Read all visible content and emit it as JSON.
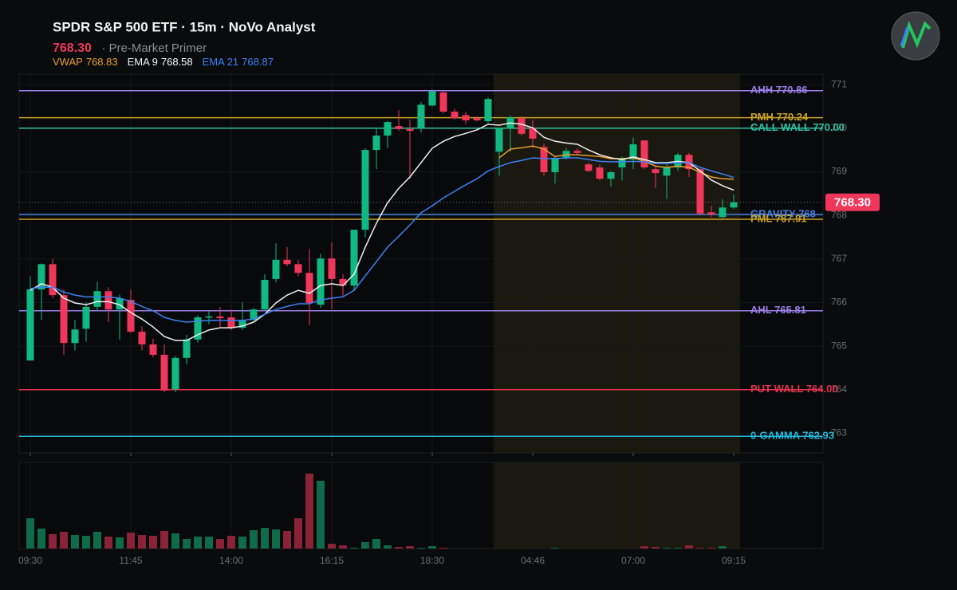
{
  "chart_data": {
    "type": "candlestick",
    "title": "SPDR S&P 500 ETF · 15m · NoVo Analyst",
    "last_price": {
      "value": 768.3,
      "label": "768.30"
    },
    "subtitle": "· Pre-Market Primer",
    "categories": [
      "09:30",
      null,
      null,
      null,
      null,
      null,
      null,
      null,
      null,
      "11:45",
      null,
      null,
      null,
      null,
      null,
      null,
      null,
      null,
      "14:00",
      null,
      null,
      null,
      null,
      null,
      null,
      null,
      null,
      "16:15",
      null,
      null,
      null,
      null,
      null,
      null,
      null,
      null,
      "18:30",
      null,
      null,
      null,
      null,
      null,
      null,
      null,
      null,
      "04:46",
      null,
      null,
      null,
      null,
      null,
      null,
      null,
      null,
      "07:00",
      null,
      null,
      null,
      null,
      null,
      null,
      null,
      null,
      "09:15"
    ],
    "open": [
      764.67,
      766.3,
      766.88,
      766.17,
      765.07,
      765.4,
      765.9,
      766.26,
      765.84,
      766.06,
      765.33,
      765.04,
      764.8,
      764.01,
      764.73,
      765.15,
      765.66,
      765.68,
      765.66,
      765.42,
      765.6,
      765.84,
      766.54,
      766.98,
      766.88,
      766.68,
      765.95,
      767.01,
      766.54,
      766.39,
      767.67,
      769.5,
      769.83,
      770.05,
      769.98,
      770.01,
      770.52,
      770.82,
      770.38,
      770.3,
      770.23,
      770.16,
      769.46,
      770.01,
      770.23,
      770.01,
      769.57,
      768.99,
      769.32,
      769.48,
      769.17,
      769.1,
      768.84,
      769.1,
      769.28,
      769.72,
      769.06,
      768.91,
      769.1,
      769.39,
      769.06,
      768.07,
      767.96,
      768.18
    ],
    "high": [
      766.6,
      766.9,
      767.0,
      766.3,
      765.6,
      766.0,
      766.48,
      766.35,
      766.18,
      766.3,
      765.45,
      765.17,
      765.04,
      764.78,
      765.26,
      765.71,
      765.8,
      765.9,
      765.84,
      766.0,
      765.88,
      766.65,
      767.36,
      767.27,
      766.98,
      767.23,
      767.12,
      767.38,
      766.65,
      767.67,
      769.54,
      770.01,
      770.16,
      770.41,
      770.2,
      770.6,
      770.89,
      770.85,
      770.45,
      770.38,
      770.27,
      770.71,
      770.01,
      770.29,
      770.27,
      770.2,
      769.65,
      769.35,
      769.54,
      769.54,
      769.21,
      769.17,
      769.02,
      769.35,
      769.79,
      769.72,
      769.13,
      769.17,
      769.43,
      769.43,
      769.1,
      768.22,
      768.37,
      768.48
    ],
    "low": [
      764.67,
      765.6,
      766.1,
      764.8,
      764.9,
      765.1,
      765.8,
      765.55,
      765.15,
      765.3,
      764.9,
      764.74,
      763.94,
      763.94,
      764.58,
      765.08,
      765.5,
      765.44,
      765.37,
      765.37,
      765.58,
      765.8,
      766.46,
      766.83,
      766.6,
      765.48,
      765.88,
      765.84,
      766.13,
      766.3,
      767.49,
      769.06,
      769.54,
      769.94,
      768.84,
      769.9,
      770.49,
      770.34,
      770.2,
      770.09,
      770.16,
      770.12,
      768.91,
      769.46,
      769.83,
      769.54,
      768.91,
      768.73,
      769.28,
      769.39,
      768.99,
      768.8,
      768.66,
      768.8,
      769.06,
      769.06,
      768.62,
      768.37,
      769.02,
      768.88,
      768.0,
      767.96,
      767.93,
      768.15
    ],
    "close": [
      766.3,
      766.88,
      766.17,
      765.07,
      765.38,
      765.9,
      766.26,
      765.84,
      766.1,
      765.33,
      765.04,
      764.8,
      763.98,
      764.73,
      765.15,
      765.66,
      765.68,
      765.64,
      765.42,
      765.6,
      765.84,
      766.52,
      766.98,
      766.88,
      766.68,
      765.99,
      767.01,
      766.54,
      766.39,
      767.67,
      769.5,
      769.83,
      770.14,
      769.98,
      769.94,
      770.54,
      770.85,
      770.38,
      770.23,
      770.18,
      770.18,
      770.67,
      770.01,
      770.25,
      769.87,
      769.76,
      768.99,
      769.32,
      769.48,
      769.43,
      769.02,
      768.84,
      768.99,
      769.28,
      769.63,
      769.1,
      768.97,
      769.1,
      769.39,
      769.06,
      768.04,
      768.02,
      768.18,
      768.3
    ],
    "volume": [
      38,
      25,
      18,
      21,
      17,
      16,
      21,
      15,
      14,
      20,
      17,
      16,
      22,
      19,
      12,
      15,
      15,
      12,
      16,
      15,
      23,
      26,
      24,
      22,
      38,
      94,
      85,
      6,
      4,
      1,
      8,
      12,
      4,
      2,
      3,
      1,
      3,
      1,
      0,
      0,
      0,
      0,
      0,
      0,
      0,
      0,
      0,
      1,
      0,
      0,
      0,
      0,
      0,
      0,
      0,
      3,
      2,
      1,
      1,
      4,
      1,
      1,
      3,
      0
    ],
    "volume_ylim": [
      0,
      108
    ],
    "up_color": "#10b981",
    "down_color": "#f0365a",
    "volume_up_color": "#0f6b4a",
    "volume_down_color": "#8a2338",
    "series": [
      {
        "name": "VWAP",
        "color": "#e8a030",
        "values": [
          null,
          null,
          null,
          null,
          null,
          null,
          null,
          null,
          null,
          null,
          null,
          null,
          null,
          null,
          null,
          null,
          null,
          null,
          null,
          null,
          null,
          null,
          null,
          null,
          null,
          null,
          null,
          null,
          null,
          null,
          null,
          null,
          null,
          null,
          null,
          null,
          null,
          null,
          null,
          null,
          null,
          null,
          769.32,
          769.52,
          769.55,
          769.59,
          769.52,
          769.35,
          769.39,
          769.39,
          769.37,
          769.35,
          769.3,
          769.3,
          769.32,
          769.24,
          769.13,
          769.1,
          769.13,
          769.1,
          768.99,
          768.88,
          768.84,
          768.83
        ]
      },
      {
        "name": "EMA 9",
        "color": "#f0f0f0",
        "values": [
          766.28,
          766.43,
          766.35,
          766.1,
          765.99,
          765.95,
          766.02,
          766.02,
          765.95,
          765.77,
          765.62,
          765.44,
          765.22,
          765.13,
          765.13,
          765.26,
          765.37,
          765.42,
          765.42,
          765.46,
          765.55,
          765.73,
          765.99,
          766.17,
          766.28,
          766.21,
          766.39,
          766.43,
          766.39,
          766.65,
          767.27,
          767.82,
          768.29,
          768.62,
          768.88,
          769.21,
          769.54,
          769.7,
          769.81,
          769.88,
          769.96,
          770.09,
          770.07,
          770.12,
          770.09,
          770.01,
          769.79,
          769.7,
          769.66,
          769.63,
          769.5,
          769.39,
          769.32,
          769.28,
          769.34,
          769.28,
          769.21,
          769.21,
          769.24,
          769.21,
          769.02,
          768.81,
          768.68,
          768.58
        ]
      },
      {
        "name": "EMA 21",
        "color": "#3b82f6",
        "values": [
          766.32,
          766.35,
          766.35,
          766.24,
          766.17,
          766.13,
          766.13,
          766.13,
          766.1,
          766.02,
          765.91,
          765.81,
          765.66,
          765.59,
          765.55,
          765.57,
          765.59,
          765.59,
          765.59,
          765.59,
          765.62,
          765.73,
          765.84,
          765.91,
          765.97,
          765.97,
          766.06,
          766.1,
          766.13,
          766.28,
          766.61,
          766.94,
          767.27,
          767.52,
          767.78,
          768.06,
          768.22,
          768.4,
          768.55,
          768.7,
          768.84,
          769.02,
          769.12,
          769.21,
          769.26,
          769.32,
          769.3,
          769.3,
          769.32,
          769.32,
          769.28,
          769.24,
          769.23,
          769.23,
          769.24,
          769.23,
          769.19,
          769.19,
          769.21,
          769.21,
          769.1,
          769.02,
          768.95,
          768.87
        ]
      }
    ],
    "levels": [
      {
        "label": "AHH 770.86",
        "value": 770.86,
        "color": "#9b7fe6"
      },
      {
        "label": "PMH 770.24",
        "value": 770.24,
        "color": "#c9a227"
      },
      {
        "label": "CALL WALL 770.00",
        "value": 770.0,
        "color": "#2ec4a0"
      },
      {
        "label": "GRAVITY 768",
        "value": 768.02,
        "color": "#4a7fe0"
      },
      {
        "label": "PML 767.91",
        "value": 767.91,
        "color": "#c9a227"
      },
      {
        "label": "AHL 765.81",
        "value": 765.81,
        "color": "#9b7fe6"
      },
      {
        "label": "PUT WALL 764.00",
        "value": 764.0,
        "color": "#e0344f"
      },
      {
        "label": "0-GAMMA 762.93",
        "value": 762.93,
        "color": "#22b8d8"
      }
    ],
    "ylim": [
      762.55,
      771.24
    ],
    "yticks": [
      763,
      764,
      765,
      766,
      767,
      768,
      769,
      770,
      771
    ],
    "grid": true
  }
}
